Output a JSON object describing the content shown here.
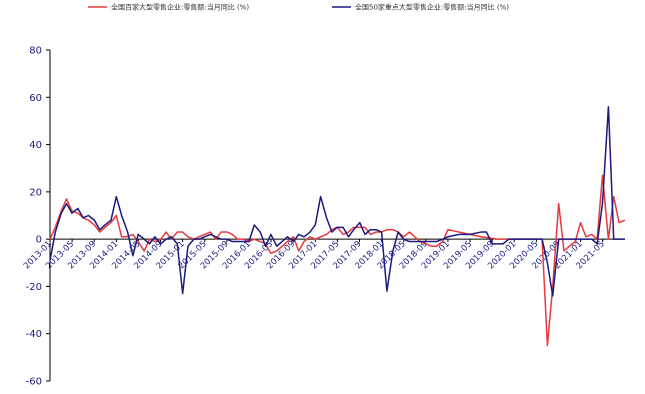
{
  "chart_data": {
    "type": "line",
    "title": "",
    "xlabel": "",
    "ylabel": "",
    "ylim": [
      -60,
      80
    ],
    "yticks": [
      -60,
      -40,
      -20,
      0,
      20,
      40,
      60,
      80
    ],
    "grid": false,
    "legend_position": "top",
    "x_tick_labels": [
      "2013-01",
      "2013-05",
      "2013-09",
      "2014-01",
      "2014-05",
      "2014-09",
      "2015-01",
      "2015-05",
      "2015-09",
      "2016-01",
      "2016-05",
      "2016-09",
      "2017-01",
      "2017-05",
      "2017-09",
      "2018-01",
      "2018-05",
      "2018-09",
      "2019-01",
      "2019-05",
      "2019-09",
      "2020-01",
      "2020-05",
      "2020-09",
      "2021-01",
      "2021-05"
    ],
    "series": [
      {
        "name": "全国百家大型零售企业:零售额:当月同比 (%)",
        "color": "#e8383d",
        "points": [
          [
            2013.0,
            0
          ],
          [
            2013.08,
            5
          ],
          [
            2013.17,
            12
          ],
          [
            2013.25,
            17
          ],
          [
            2013.33,
            12
          ],
          [
            2013.42,
            11
          ],
          [
            2013.5,
            9
          ],
          [
            2013.58,
            8
          ],
          [
            2013.67,
            6
          ],
          [
            2013.75,
            3
          ],
          [
            2013.83,
            5
          ],
          [
            2013.92,
            7
          ],
          [
            2014.0,
            10
          ],
          [
            2014.08,
            1
          ],
          [
            2014.17,
            1
          ],
          [
            2014.25,
            2
          ],
          [
            2014.33,
            -1
          ],
          [
            2014.42,
            -5
          ],
          [
            2014.5,
            0
          ],
          [
            2014.58,
            -1
          ],
          [
            2014.67,
            0
          ],
          [
            2014.75,
            3
          ],
          [
            2014.83,
            0
          ],
          [
            2014.92,
            3
          ],
          [
            2015.0,
            3
          ],
          [
            2015.08,
            1
          ],
          [
            2015.17,
            0
          ],
          [
            2015.25,
            1
          ],
          [
            2015.33,
            2
          ],
          [
            2015.42,
            3
          ],
          [
            2015.5,
            0
          ],
          [
            2015.58,
            3
          ],
          [
            2015.67,
            3
          ],
          [
            2015.75,
            2
          ],
          [
            2015.83,
            0
          ],
          [
            2015.92,
            0
          ],
          [
            2016.0,
            -1
          ],
          [
            2016.08,
            0
          ],
          [
            2016.17,
            -1
          ],
          [
            2016.25,
            -2
          ],
          [
            2016.33,
            -6
          ],
          [
            2016.42,
            -5
          ],
          [
            2016.5,
            -3
          ],
          [
            2016.58,
            -1
          ],
          [
            2016.67,
            1
          ],
          [
            2016.75,
            -5
          ],
          [
            2016.83,
            -1
          ],
          [
            2016.92,
            1
          ],
          [
            2017.0,
            0
          ],
          [
            2017.08,
            1
          ],
          [
            2017.17,
            2
          ],
          [
            2017.25,
            4
          ],
          [
            2017.33,
            5
          ],
          [
            2017.42,
            2
          ],
          [
            2017.5,
            3
          ],
          [
            2017.58,
            5
          ],
          [
            2017.67,
            5
          ],
          [
            2017.75,
            5
          ],
          [
            2017.83,
            2
          ],
          [
            2017.92,
            3
          ],
          [
            2018.0,
            3
          ],
          [
            2018.08,
            4
          ],
          [
            2018.17,
            4
          ],
          [
            2018.25,
            3
          ],
          [
            2018.33,
            1
          ],
          [
            2018.42,
            3
          ],
          [
            2018.5,
            1
          ],
          [
            2018.58,
            -1
          ],
          [
            2018.67,
            -2
          ],
          [
            2018.75,
            -3
          ],
          [
            2018.83,
            -3
          ],
          [
            2018.92,
            -1
          ],
          [
            2019.0,
            4
          ],
          [
            2019.17,
            3
          ],
          [
            2019.33,
            2
          ],
          [
            2019.5,
            1
          ],
          [
            2019.75,
            0
          ],
          [
            2019.92,
            0
          ],
          [
            2020.0,
            0
          ],
          [
            2020.08,
            0
          ],
          [
            2020.17,
            0
          ],
          [
            2020.25,
            0
          ],
          [
            2020.33,
            0
          ],
          [
            2020.42,
            0
          ],
          [
            2020.5,
            -45
          ],
          [
            2020.58,
            -20
          ],
          [
            2020.67,
            15
          ],
          [
            2020.75,
            -5
          ],
          [
            2020.83,
            -3
          ],
          [
            2020.92,
            -1
          ],
          [
            2021.0,
            7
          ],
          [
            2021.08,
            1
          ],
          [
            2021.17,
            2
          ],
          [
            2021.25,
            0
          ],
          [
            2021.33,
            27
          ],
          [
            2021.42,
            0
          ],
          [
            2021.5,
            18
          ],
          [
            2021.58,
            7
          ],
          [
            2021.67,
            8
          ]
        ]
      },
      {
        "name": "全国50家重点大型零售企业:零售额:当月同比 (%)",
        "color": "#1a1a80",
        "points": [
          [
            2013.0,
            -9
          ],
          [
            2013.08,
            3
          ],
          [
            2013.17,
            11
          ],
          [
            2013.25,
            15
          ],
          [
            2013.33,
            11
          ],
          [
            2013.42,
            13
          ],
          [
            2013.5,
            9
          ],
          [
            2013.58,
            10
          ],
          [
            2013.67,
            8
          ],
          [
            2013.75,
            4
          ],
          [
            2013.83,
            6
          ],
          [
            2013.92,
            8
          ],
          [
            2014.0,
            18
          ],
          [
            2014.08,
            10
          ],
          [
            2014.17,
            3
          ],
          [
            2014.25,
            -7
          ],
          [
            2014.33,
            2
          ],
          [
            2014.42,
            0
          ],
          [
            2014.5,
            -2
          ],
          [
            2014.58,
            1
          ],
          [
            2014.67,
            -2
          ],
          [
            2014.75,
            0
          ],
          [
            2014.83,
            1
          ],
          [
            2014.92,
            -2
          ],
          [
            2015.0,
            -23
          ],
          [
            2015.08,
            -3
          ],
          [
            2015.17,
            0
          ],
          [
            2015.25,
            0
          ],
          [
            2015.33,
            1
          ],
          [
            2015.42,
            2
          ],
          [
            2015.5,
            1
          ],
          [
            2015.58,
            0
          ],
          [
            2015.67,
            0
          ],
          [
            2015.75,
            -1
          ],
          [
            2015.83,
            -1
          ],
          [
            2015.92,
            -1
          ],
          [
            2016.0,
            -1
          ],
          [
            2016.08,
            6
          ],
          [
            2016.17,
            3
          ],
          [
            2016.25,
            -3
          ],
          [
            2016.33,
            2
          ],
          [
            2016.42,
            -3
          ],
          [
            2016.5,
            -1
          ],
          [
            2016.58,
            1
          ],
          [
            2016.67,
            -1
          ],
          [
            2016.75,
            2
          ],
          [
            2016.83,
            1
          ],
          [
            2016.92,
            3
          ],
          [
            2017.0,
            6
          ],
          [
            2017.08,
            18
          ],
          [
            2017.17,
            9
          ],
          [
            2017.25,
            3
          ],
          [
            2017.33,
            5
          ],
          [
            2017.42,
            5
          ],
          [
            2017.5,
            1
          ],
          [
            2017.58,
            4
          ],
          [
            2017.67,
            7
          ],
          [
            2017.75,
            2
          ],
          [
            2017.83,
            4
          ],
          [
            2017.92,
            4
          ],
          [
            2018.0,
            3
          ],
          [
            2018.08,
            -22
          ],
          [
            2018.17,
            -5
          ],
          [
            2018.25,
            3
          ],
          [
            2018.33,
            0
          ],
          [
            2018.42,
            -1
          ],
          [
            2018.5,
            -1
          ],
          [
            2018.58,
            -1
          ],
          [
            2018.67,
            -1
          ],
          [
            2018.75,
            -1
          ],
          [
            2018.83,
            -1
          ],
          [
            2018.92,
            0
          ],
          [
            2019.0,
            1
          ],
          [
            2019.17,
            2
          ],
          [
            2019.33,
            2
          ],
          [
            2019.5,
            3
          ],
          [
            2019.58,
            3
          ],
          [
            2019.67,
            -2
          ],
          [
            2019.83,
            -2
          ],
          [
            2019.92,
            0
          ],
          [
            2020.0,
            0
          ],
          [
            2020.17,
            0
          ],
          [
            2020.33,
            0
          ],
          [
            2020.42,
            0
          ],
          [
            2020.5,
            -10
          ],
          [
            2020.58,
            -24
          ],
          [
            2020.67,
            0
          ],
          [
            2020.75,
            0
          ],
          [
            2020.92,
            0
          ],
          [
            2021.0,
            0
          ],
          [
            2021.08,
            0
          ],
          [
            2021.17,
            0
          ],
          [
            2021.25,
            -2
          ],
          [
            2021.33,
            15
          ],
          [
            2021.42,
            56
          ],
          [
            2021.5,
            0
          ],
          [
            2021.58,
            0
          ],
          [
            2021.67,
            0
          ]
        ]
      }
    ]
  }
}
